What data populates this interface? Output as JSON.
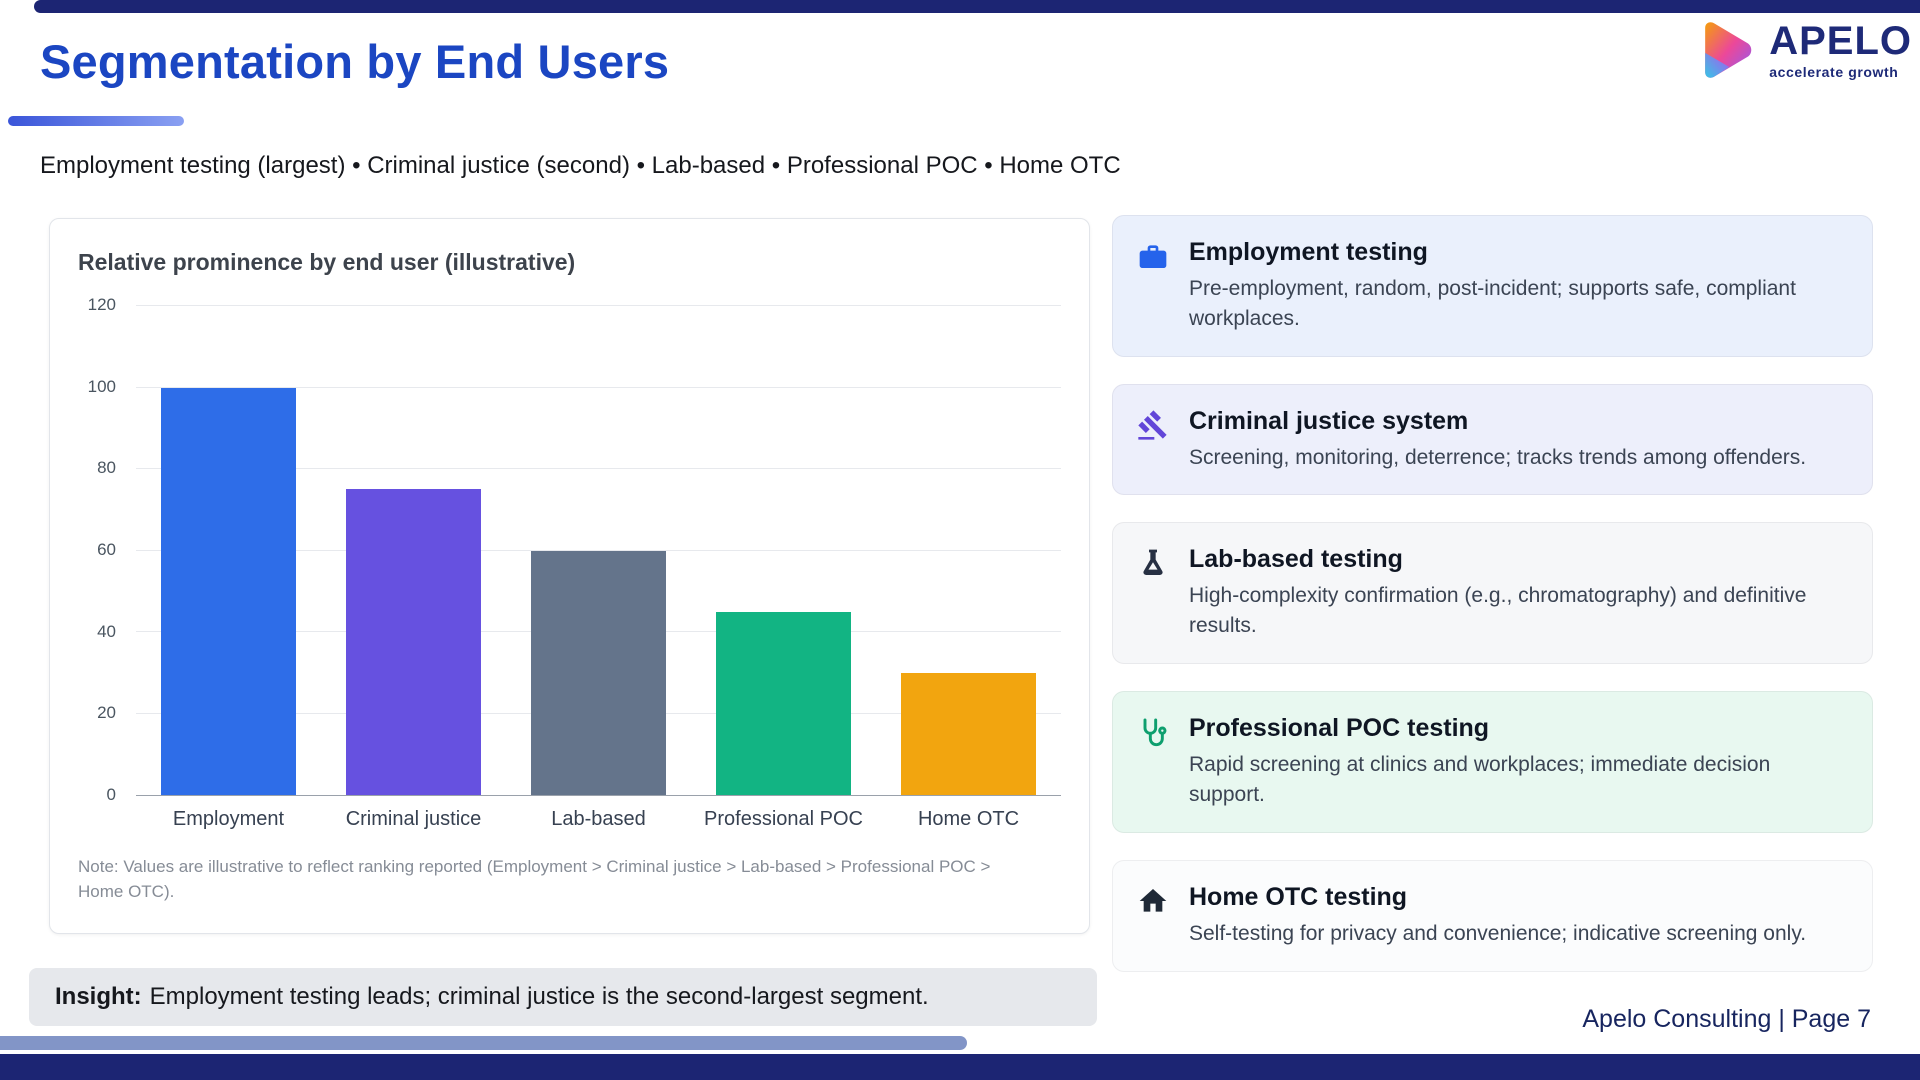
{
  "slide": {
    "title": "Segmentation by End Users",
    "subtitle": "Employment testing (largest) • Criminal justice (second) • Lab-based • Professional POC • Home OTC",
    "footer": "Apelo Consulting  |  Page 7"
  },
  "logo": {
    "name": "APELO",
    "tagline": "accelerate growth"
  },
  "chart_data": {
    "type": "bar",
    "title": "Relative prominence by end user (illustrative)",
    "categories": [
      "Employment",
      "Criminal justice",
      "Lab-based",
      "Professional POC",
      "Home OTC"
    ],
    "values": [
      100,
      75,
      60,
      45,
      30
    ],
    "bar_colors": [
      "#2e6de8",
      "#6651e0",
      "#64748b",
      "#12b483",
      "#f2a50f"
    ],
    "ylim": [
      0,
      120
    ],
    "ytick_step": 20,
    "grid": true,
    "legend": false,
    "xlabel": "",
    "ylabel": "",
    "note": "Note: Values are illustrative to reflect ranking reported (Employment > Criminal justice > Lab-based > Professional POC > Home OTC)."
  },
  "insight": {
    "label": "Insight:",
    "text": "Employment testing leads; criminal justice is the second-largest segment."
  },
  "cards": [
    {
      "icon": "briefcase-icon",
      "title": "Employment testing",
      "body": "Pre-employment, random, post-incident; supports safe, compliant workplaces.",
      "bg": "#eaf0fc",
      "icon_color": "#2563eb"
    },
    {
      "icon": "gavel-icon",
      "title": "Criminal justice system",
      "body": "Screening, monitoring, deterrence; tracks trends among offenders.",
      "bg": "#edeffb",
      "icon_color": "#6246d8"
    },
    {
      "icon": "flask-icon",
      "title": "Lab-based testing",
      "body": "High-complexity confirmation (e.g., chromatography) and definitive results.",
      "bg": "#f6f7f9",
      "icon_color": "#273043"
    },
    {
      "icon": "stethoscope-icon",
      "title": "Professional POC testing",
      "body": "Rapid screening at clinics and workplaces; immediate decision support.",
      "bg": "#e8f8f0",
      "icon_color": "#0e9f6e"
    },
    {
      "icon": "home-icon",
      "title": "Home OTC testing",
      "body": "Self-testing for privacy and convenience; indicative screening only.",
      "bg": "#fbfcfd",
      "icon_color": "#1f2937"
    }
  ],
  "colors": {
    "accent_navy": "#1c2573",
    "title_blue": "#1b46c2",
    "underline_blue": "#4f6df5",
    "bottom_light_bar": "#8295c7",
    "insight_bg": "#e6e8ec",
    "footer_navy": "#17255f"
  }
}
